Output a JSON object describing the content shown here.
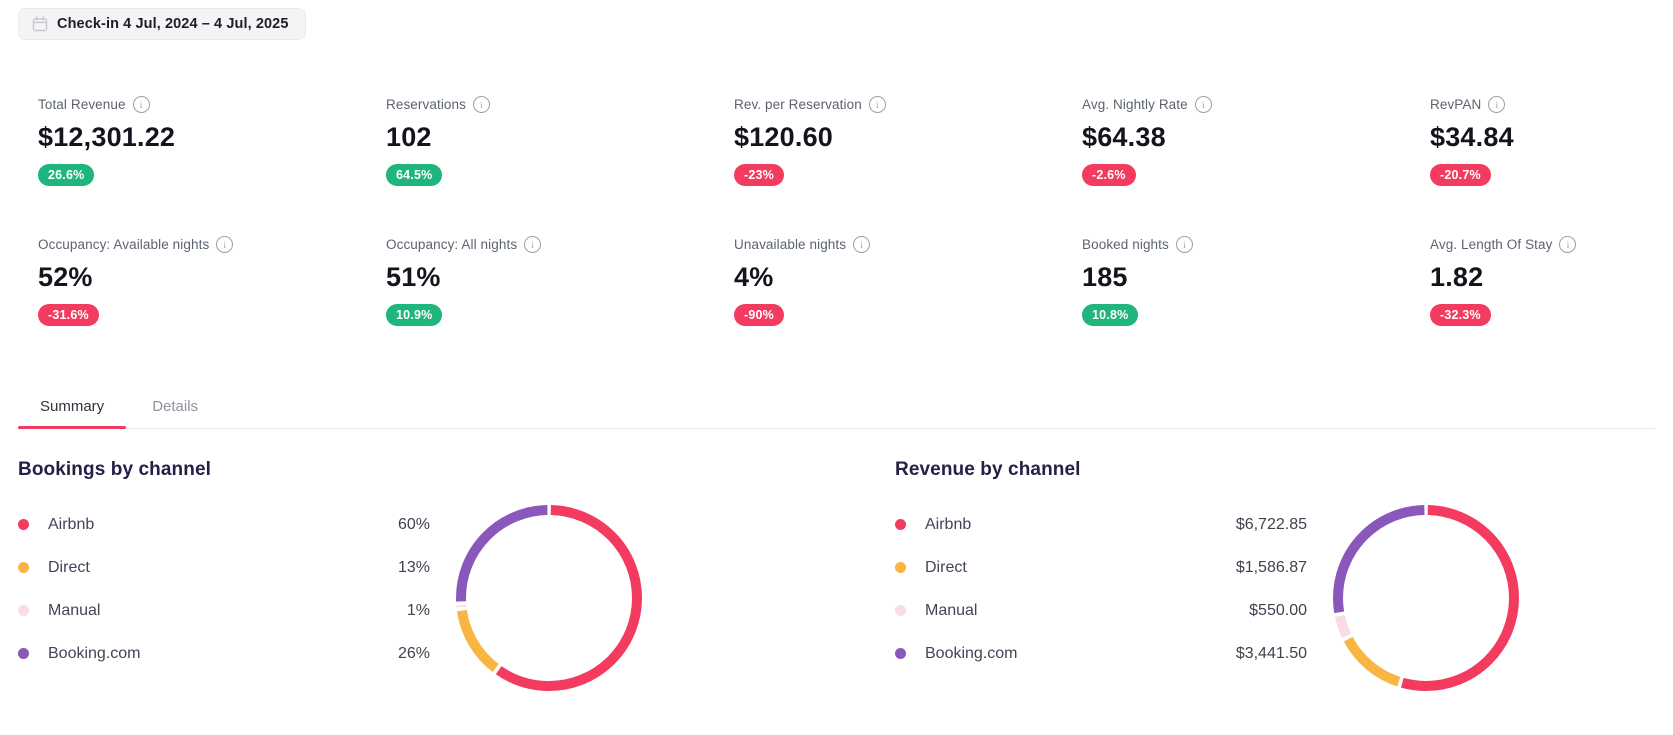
{
  "date_filter": {
    "label": "Check-in 4 Jul, 2024 – 4 Jul, 2025",
    "icon": "calendar-icon"
  },
  "colors": {
    "positive": "#1eb67c",
    "negative": "#f23b5f",
    "accent": "#f23b5f",
    "divider": "#e8e8ed"
  },
  "kpi_rows": [
    [
      {
        "label": "Total Revenue",
        "value": "$12,301.22",
        "delta": "26.6%",
        "trend": "up"
      },
      {
        "label": "Reservations",
        "value": "102",
        "delta": "64.5%",
        "trend": "up"
      },
      {
        "label": "Rev. per Reservation",
        "value": "$120.60",
        "delta": "-23%",
        "trend": "down"
      },
      {
        "label": "Avg. Nightly Rate",
        "value": "$64.38",
        "delta": "-2.6%",
        "trend": "down"
      },
      {
        "label": "RevPAN",
        "value": "$34.84",
        "delta": "-20.7%",
        "trend": "down"
      }
    ],
    [
      {
        "label": "Occupancy: Available nights",
        "value": "52%",
        "delta": "-31.6%",
        "trend": "down"
      },
      {
        "label": "Occupancy: All nights",
        "value": "51%",
        "delta": "10.9%",
        "trend": "up"
      },
      {
        "label": "Unavailable nights",
        "value": "4%",
        "delta": "-90%",
        "trend": "down"
      },
      {
        "label": "Booked nights",
        "value": "185",
        "delta": "10.8%",
        "trend": "up"
      },
      {
        "label": "Avg. Length Of Stay",
        "value": "1.82",
        "delta": "-32.3%",
        "trend": "down"
      }
    ]
  ],
  "tabs": [
    {
      "label": "Summary",
      "active": true
    },
    {
      "label": "Details",
      "active": false
    }
  ],
  "chart_data": [
    {
      "type": "pie",
      "donut": true,
      "title": "Bookings by channel",
      "categories": [
        "Airbnb",
        "Direct",
        "Manual",
        "Booking.com"
      ],
      "values": [
        60,
        13,
        1,
        26
      ],
      "value_labels": [
        "60%",
        "13%",
        "1%",
        "26%"
      ],
      "colors": [
        "#f23b5f",
        "#f9b543",
        "#fadde1",
        "#8a58ba"
      ],
      "legend_position": "left",
      "start_angle": "top",
      "direction": "clockwise"
    },
    {
      "type": "pie",
      "donut": true,
      "title": "Revenue by channel",
      "categories": [
        "Airbnb",
        "Direct",
        "Manual",
        "Booking.com"
      ],
      "values": [
        6722.85,
        1586.87,
        550.0,
        3441.5
      ],
      "value_labels": [
        "$6,722.85",
        "$1,586.87",
        "$550.00",
        "$3,441.50"
      ],
      "colors": [
        "#f23b5f",
        "#f9b543",
        "#fadde1",
        "#8a58ba"
      ],
      "legend_position": "left",
      "start_angle": "top",
      "direction": "clockwise"
    }
  ]
}
